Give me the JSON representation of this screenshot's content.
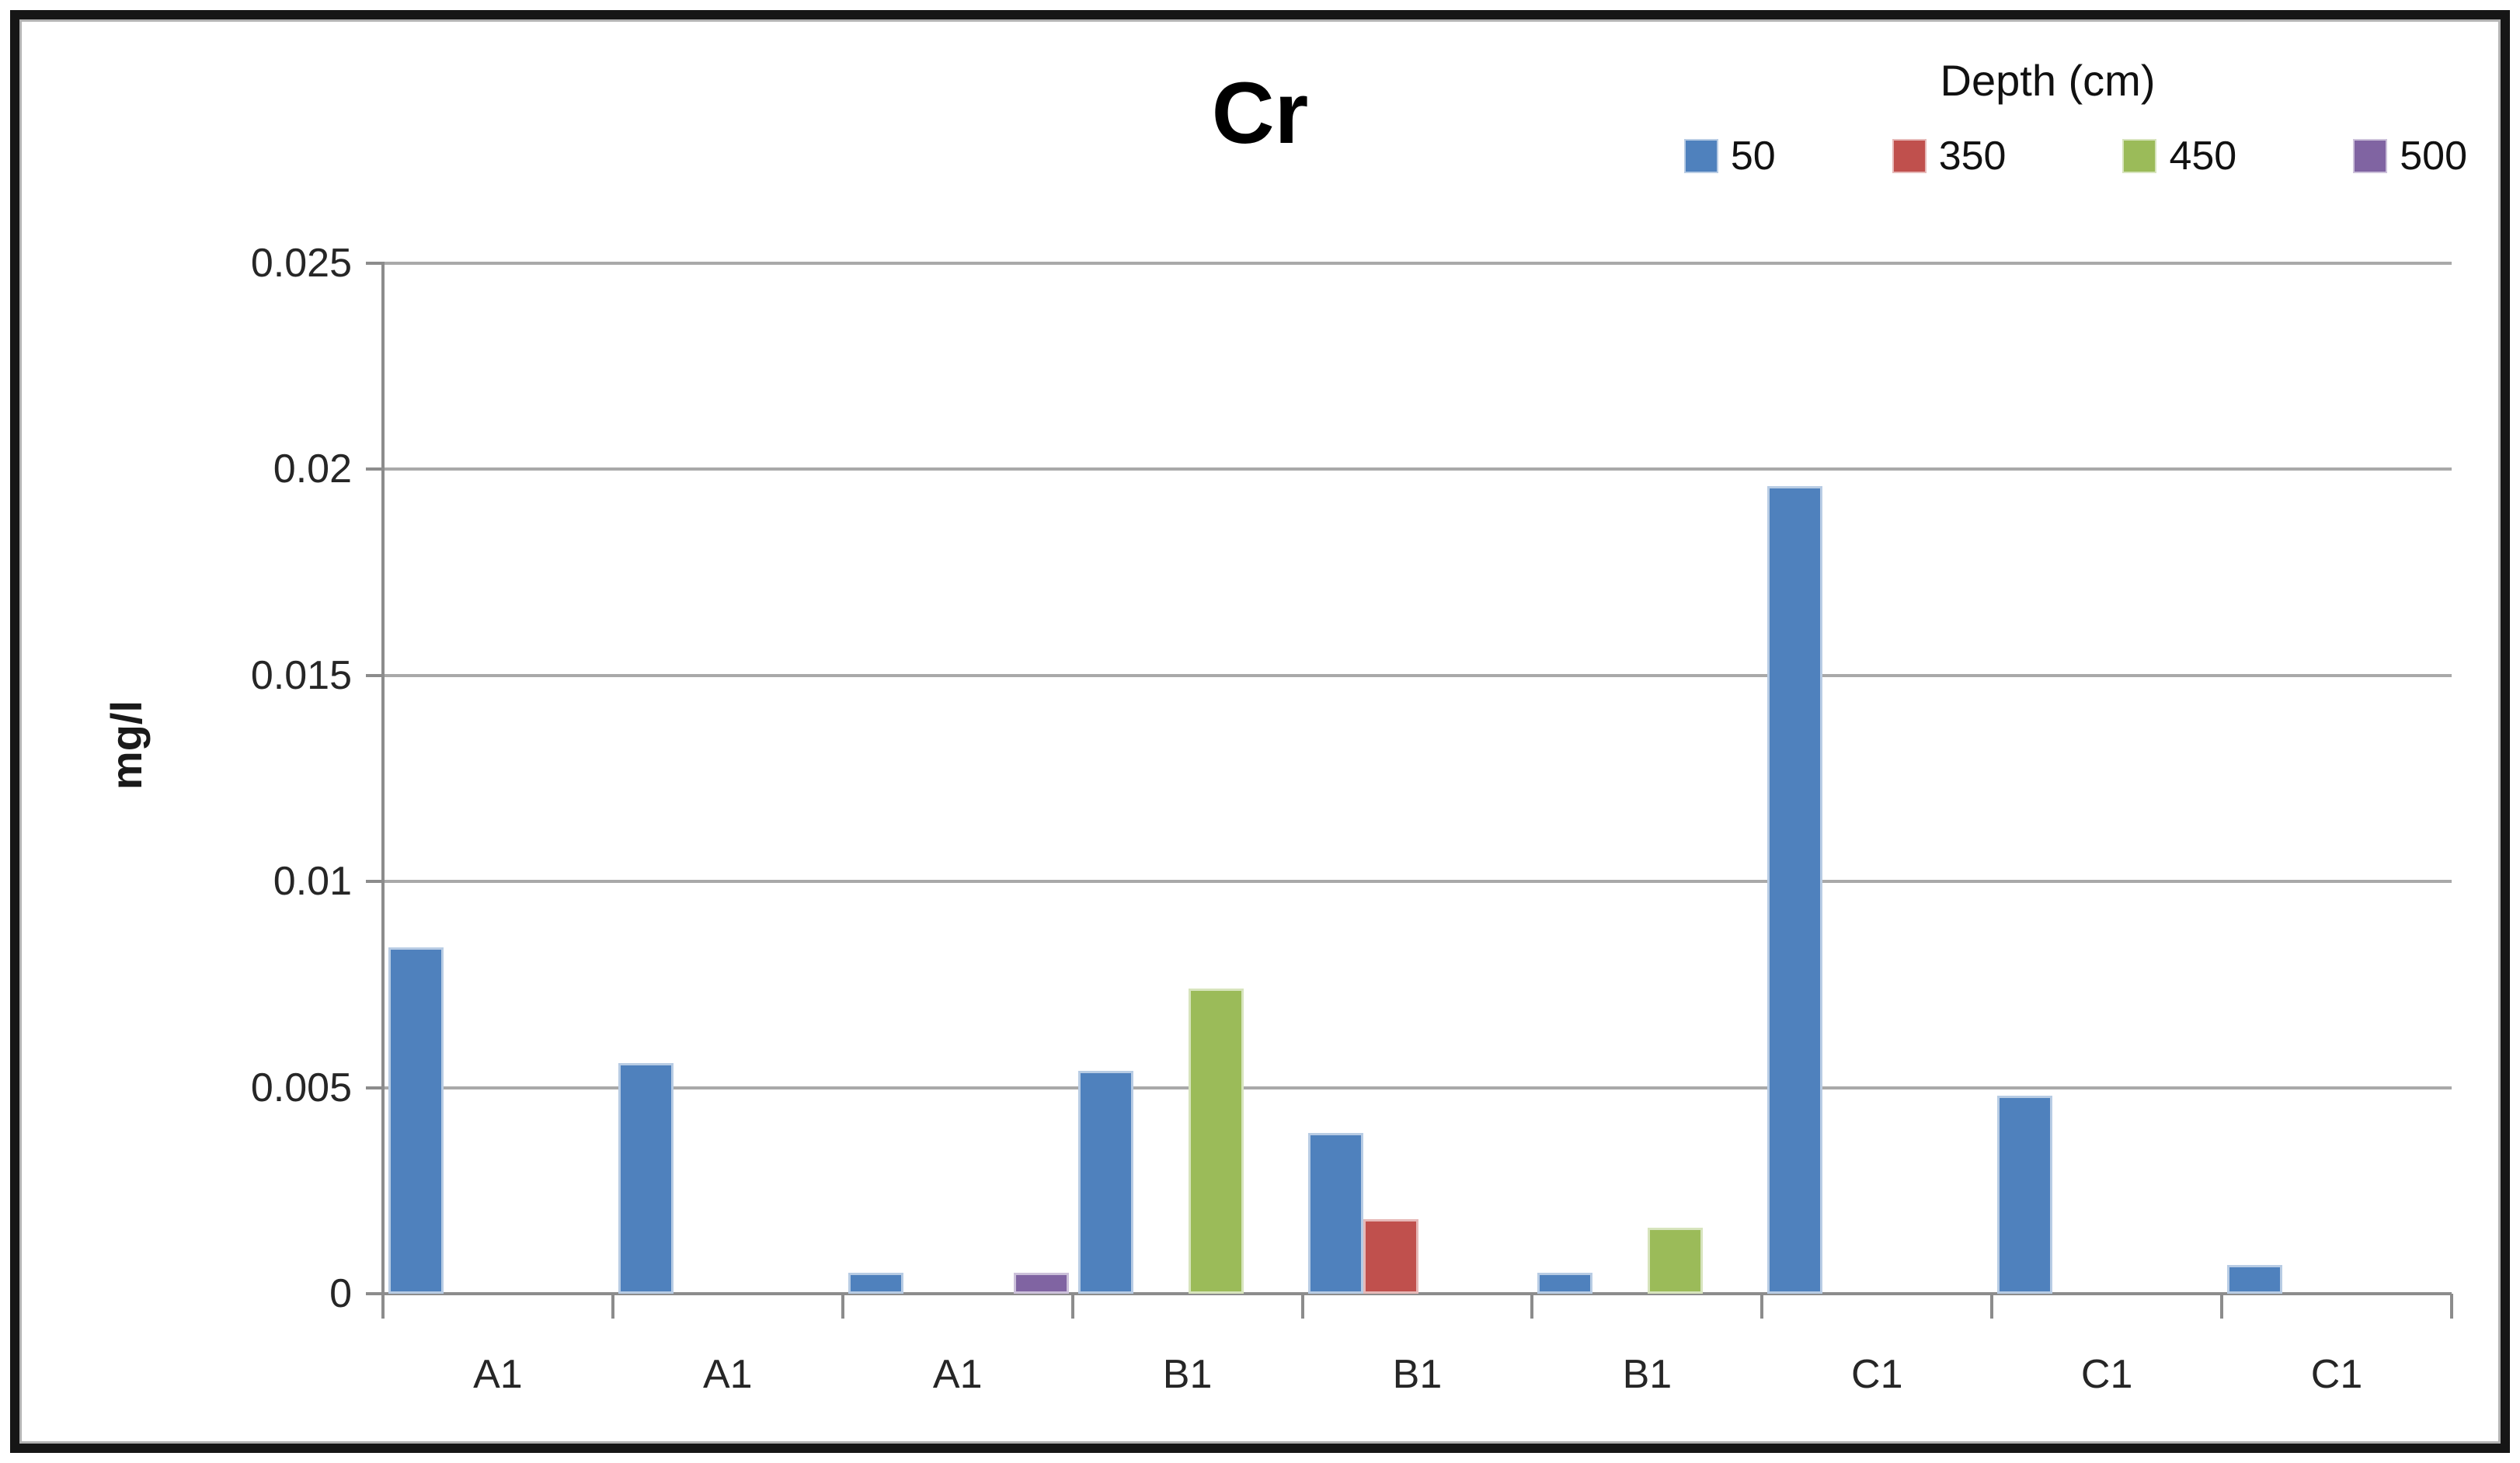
{
  "chart_data": {
    "type": "bar",
    "title": "Cr",
    "ylabel": "mg/l",
    "legend_title": "Depth (cm)",
    "legend_position": "top-right",
    "grid": true,
    "categories": [
      "A1",
      "A1",
      "A1",
      "B1",
      "B1",
      "B1",
      "C1",
      "C1",
      "C1"
    ],
    "ytick_labels": [
      "0",
      "0.005",
      "0.01",
      "0.015",
      "0.02",
      "0.025"
    ],
    "ylim": [
      0,
      0.025
    ],
    "series": [
      {
        "name": "50",
        "color": "#4F81BD",
        "border_color": "#B8CCE4",
        "values": [
          0.0084,
          0.0056,
          0.0005,
          0.0054,
          0.0039,
          0.0005,
          0.0196,
          0.0048,
          0.0007
        ]
      },
      {
        "name": "350",
        "color": "#C0504D",
        "border_color": "#E6B9B8",
        "values": [
          null,
          null,
          null,
          null,
          0.0018,
          null,
          null,
          null,
          null
        ]
      },
      {
        "name": "450",
        "color": "#9BBB59",
        "border_color": "#D7E4BD",
        "values": [
          null,
          null,
          null,
          0.0074,
          null,
          0.0016,
          null,
          null,
          null
        ]
      },
      {
        "name": "500",
        "color": "#8064A2",
        "border_color": "#CCC1DA",
        "values": [
          null,
          null,
          0.0005,
          null,
          null,
          null,
          null,
          null,
          null
        ]
      }
    ],
    "axis_color": "#8C8C8C",
    "gridline_color": "#A9A9A9",
    "text_color": "#262626"
  }
}
